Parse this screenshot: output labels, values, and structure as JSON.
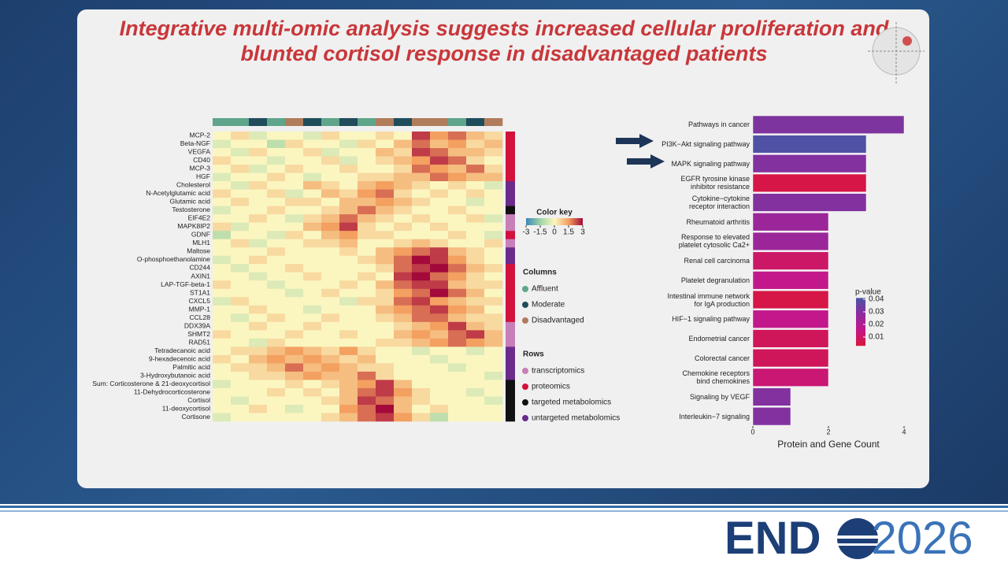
{
  "slide": {
    "title": [
      "Integrative multi-omic analysis suggests increased cellular proliferation and",
      "blunted cortisol response in disadvantaged patients"
    ]
  },
  "footer": {
    "brand_left": "END",
    "brand_right": "2026"
  },
  "chart_data": [
    {
      "type": "heatmap",
      "row_labels": [
        "MCP-2",
        "Beta-NGF",
        "VEGFA",
        "CD40",
        "MCP-3",
        "HGF",
        "Cholesterol",
        "N-Acetylglutamic acid",
        "Glutamic acid",
        "Testosterone",
        "EIF4E2",
        "MAPK8IP2",
        "GDNF",
        "MLH1",
        "Maltose",
        "O-phosphoethanolamine",
        "CD244",
        "AXIN1",
        "LAP-TGF-beta-1",
        "ST1A1",
        "CXCL5",
        "MMP-1",
        "CCL28",
        "DDX39A",
        "SHMT2",
        "RAD51",
        "Tetradecanoic acid",
        "9-hexadecenoic acid",
        "Palmitic acid",
        "3-Hydroxybutanoic acid",
        "Sum: Corticosterone & 21-deoxycortisol",
        "11-Dehydrocorticosterone",
        "Cortisol",
        "11-deoxycortisol",
        "Cortisone"
      ],
      "row_groups": [
        "proteomics",
        "proteomics",
        "proteomics",
        "proteomics",
        "proteomics",
        "proteomics",
        "untargeted metabolomics",
        "untargeted metabolomics",
        "untargeted metabolomics",
        "targeted metabolomics",
        "transcriptomics",
        "transcriptomics",
        "proteomics",
        "transcriptomics",
        "untargeted metabolomics",
        "untargeted metabolomics",
        "proteomics",
        "proteomics",
        "proteomics",
        "proteomics",
        "proteomics",
        "proteomics",
        "proteomics",
        "transcriptomics",
        "transcriptomics",
        "transcriptomics",
        "untargeted metabolomics",
        "untargeted metabolomics",
        "untargeted metabolomics",
        "untargeted metabolomics",
        "targeted metabolomics",
        "targeted metabolomics",
        "targeted metabolomics",
        "targeted metabolomics",
        "targeted metabolomics"
      ],
      "column_groups": [
        "Affluent",
        "Affluent",
        "Moderate",
        "Affluent",
        "Disadvantaged",
        "Moderate",
        "Affluent",
        "Moderate",
        "Affluent",
        "Disadvantaged",
        "Moderate",
        "Disadvantaged",
        "Disadvantaged",
        "Affluent",
        "Moderate",
        "Disadvantaged"
      ],
      "values": [
        [
          0,
          0.5,
          -0.5,
          0,
          0,
          -0.5,
          0.5,
          0,
          0,
          0.5,
          0,
          2.5,
          1.5,
          2,
          1,
          0.5
        ],
        [
          -0.5,
          0,
          0,
          -1,
          0.5,
          0,
          0,
          -0.5,
          0.5,
          0,
          1,
          2,
          1,
          1.5,
          0.5,
          1
        ],
        [
          0,
          -0.5,
          0.5,
          0,
          0,
          0.5,
          -0.5,
          0,
          0,
          1,
          0.5,
          2.5,
          2,
          1,
          1,
          0.5
        ],
        [
          0.5,
          0,
          0,
          -0.5,
          0,
          0,
          0.5,
          -0.5,
          0,
          0.5,
          1,
          1.5,
          2.5,
          2,
          0.5,
          0
        ],
        [
          0,
          0.5,
          -0.5,
          0,
          0.5,
          0,
          0,
          0.5,
          0,
          0,
          0.5,
          2,
          1.5,
          1,
          2,
          0.5
        ],
        [
          -0.5,
          0,
          0,
          0.5,
          0,
          -0.5,
          0,
          0,
          0.5,
          0.5,
          1,
          1,
          2,
          1.5,
          1,
          1
        ],
        [
          0,
          -0.5,
          0.5,
          0,
          0,
          1,
          0.5,
          0,
          1,
          1.5,
          1,
          0.5,
          0,
          0.5,
          0,
          -0.5
        ],
        [
          0.5,
          0,
          0,
          0.5,
          -0.5,
          0,
          1,
          0.5,
          1.5,
          2,
          0.5,
          0,
          0.5,
          0,
          0.5,
          0
        ],
        [
          0,
          0.5,
          0,
          0,
          0.5,
          0.5,
          0,
          1,
          1,
          1.5,
          1,
          0.5,
          0,
          0,
          -0.5,
          0
        ],
        [
          -0.5,
          0,
          0,
          0.5,
          0,
          0,
          0.5,
          1,
          2,
          1,
          0.5,
          0,
          0,
          0.5,
          0,
          0
        ],
        [
          0,
          0,
          0.5,
          0,
          -0.5,
          0.5,
          1,
          2,
          1,
          0.5,
          0,
          0.5,
          0,
          0,
          0.5,
          -0.5
        ],
        [
          0.5,
          -0.5,
          0,
          0,
          0,
          1,
          1.5,
          2.5,
          0.5,
          0,
          0.5,
          0,
          0.5,
          0,
          0,
          0
        ],
        [
          -1,
          0,
          0,
          -0.5,
          0.5,
          0,
          1,
          1.5,
          0.5,
          0.5,
          0,
          0,
          0,
          0.5,
          0,
          -0.5
        ],
        [
          0,
          0.5,
          -0.5,
          0,
          0,
          0.5,
          0.5,
          1,
          0,
          0,
          0.5,
          1,
          0.5,
          0,
          0,
          0.5
        ],
        [
          0,
          0,
          0,
          0.5,
          0,
          0,
          0,
          0.5,
          0,
          1,
          1.5,
          2,
          2.5,
          1,
          0.5,
          0
        ],
        [
          -0.5,
          0,
          0.5,
          0,
          0,
          0,
          0,
          0,
          0.5,
          1,
          2,
          3,
          2.5,
          1.5,
          0.5,
          0
        ],
        [
          0,
          -0.5,
          0,
          0,
          0.5,
          0,
          0,
          0,
          0,
          0.5,
          2,
          2.5,
          3,
          2,
          1,
          0.5
        ],
        [
          0,
          0,
          -0.5,
          0,
          0,
          0.5,
          0,
          0,
          0.5,
          0,
          2.5,
          3,
          2,
          1.5,
          0.5,
          0
        ],
        [
          0.5,
          0,
          0,
          -0.5,
          0,
          0,
          0,
          0.5,
          0,
          1,
          2,
          2.5,
          2.5,
          1,
          0.5,
          0.5
        ],
        [
          0,
          0,
          0,
          0,
          -0.5,
          0,
          0.5,
          0,
          0,
          0.5,
          1.5,
          2,
          3,
          2,
          1,
          0
        ],
        [
          -0.5,
          0.5,
          0,
          0,
          0,
          0,
          0,
          -0.5,
          0.5,
          0.5,
          2,
          2.5,
          1.5,
          1,
          0.5,
          0.5
        ],
        [
          0,
          0,
          0.5,
          0,
          0,
          -0.5,
          0,
          0,
          0,
          1,
          1.5,
          2,
          2.5,
          1.5,
          1,
          0
        ],
        [
          0,
          -0.5,
          0,
          0.5,
          0,
          0,
          0.5,
          0,
          0,
          0.5,
          1,
          2,
          2,
          1,
          0.5,
          0.5
        ],
        [
          0,
          0,
          0.5,
          0,
          0,
          0.5,
          0,
          0,
          0,
          0,
          0.5,
          1,
          1.5,
          2.5,
          1,
          0.5
        ],
        [
          0.5,
          0,
          0,
          0,
          0.5,
          0,
          0,
          0.5,
          0,
          0,
          1,
          1.5,
          1,
          2,
          2.5,
          1
        ],
        [
          0,
          0,
          -0.5,
          0.5,
          0,
          0,
          0,
          0,
          0,
          0.5,
          0.5,
          1,
          1.5,
          2,
          1.5,
          1
        ],
        [
          0,
          0.5,
          0.5,
          1,
          1.5,
          1,
          0.5,
          1.5,
          0.5,
          0,
          0,
          -0.5,
          0,
          0,
          -0.5,
          0
        ],
        [
          0.5,
          0,
          1,
          1.5,
          1,
          1.5,
          1,
          0.5,
          1,
          0,
          0,
          0,
          -0.5,
          0,
          0,
          0
        ],
        [
          0,
          0.5,
          0.5,
          1,
          2,
          1,
          1.5,
          1,
          0.5,
          0.5,
          0,
          0,
          0,
          -0.5,
          0,
          0
        ],
        [
          0,
          0,
          0.5,
          0.5,
          1,
          1.5,
          1,
          1,
          2,
          0.5,
          0,
          0,
          0,
          0,
          0,
          -0.5
        ],
        [
          -0.5,
          0,
          0,
          0,
          0.5,
          0,
          0.5,
          1,
          1.5,
          2.5,
          1,
          0,
          0,
          0,
          0,
          0
        ],
        [
          0,
          0,
          0,
          0.5,
          0,
          0.5,
          0,
          1,
          2,
          2.5,
          1.5,
          0.5,
          0,
          0,
          -0.5,
          0
        ],
        [
          0,
          -0.5,
          0,
          0,
          0,
          0,
          0.5,
          1,
          2.5,
          2,
          1,
          0.5,
          0,
          0,
          0,
          -0.5
        ],
        [
          0,
          0,
          0.5,
          0,
          -0.5,
          0,
          0,
          1.5,
          2,
          3,
          1,
          0,
          0.5,
          0,
          0,
          0
        ],
        [
          -0.5,
          0,
          0,
          0,
          0,
          0,
          0.5,
          1,
          2,
          2.5,
          1.5,
          0.5,
          -1,
          0,
          0,
          0
        ]
      ],
      "color_key": {
        "title": "Color key",
        "lim": [
          -3,
          3
        ],
        "ticks": [
          -3,
          -1.5,
          0,
          1.5,
          3
        ],
        "colors": [
          "#3b86bb",
          "#9fd3a4",
          "#fbf6c0",
          "#f3a060",
          "#a3093a"
        ]
      },
      "columns_legend": {
        "title": "Columns",
        "items": [
          {
            "name": "Affluent",
            "color": "#5fa58c"
          },
          {
            "name": "Moderate",
            "color": "#1f4d5c"
          },
          {
            "name": "Disadvantaged",
            "color": "#b07c5c"
          }
        ]
      },
      "rows_legend": {
        "title": "Rows",
        "items": [
          {
            "name": "transcriptomics",
            "color": "#c77fb8"
          },
          {
            "name": "proteomics",
            "color": "#d2123c"
          },
          {
            "name": "targeted metabolomics",
            "color": "#111111"
          },
          {
            "name": "untargeted metabolomics",
            "color": "#6a2b8a"
          }
        ]
      }
    },
    {
      "type": "bar",
      "orientation": "horizontal",
      "categories": [
        "Pathways in cancer",
        "PI3K−Akt signaling pathway",
        "MAPK signaling pathway",
        "EGFR tyrosine kinase\ninhibitor resistance",
        "Cytokine−cytokine\nreceptor interaction",
        "Rheumatoid arthritis",
        "Response to elevated\nplatelet cytosolic Ca2+",
        "Renal cell carcinoma",
        "Platelet degranulation",
        "Intestinal immune network\nfor IgA production",
        "HIF−1 signaling pathway",
        "Endometrial cancer",
        "Colorectal cancer",
        "Chemokine receptors\nbind chemokines",
        "Signaling by VEGF",
        "Interleukin−7 signaling"
      ],
      "values": [
        4,
        3,
        3,
        3,
        3,
        2,
        2,
        2,
        2,
        2,
        2,
        2,
        2,
        2,
        1,
        1
      ],
      "p_values": [
        0.031,
        0.04,
        0.03,
        0.005,
        0.03,
        0.025,
        0.025,
        0.01,
        0.016,
        0.005,
        0.016,
        0.008,
        0.008,
        0.012,
        0.03,
        0.03
      ],
      "xlim": [
        0,
        4
      ],
      "xticks": [
        0,
        2,
        4
      ],
      "xlabel": "Protein and Gene Count",
      "color_scale": {
        "title": "p-value",
        "lim": [
          0.003,
          0.041
        ],
        "ticks": [
          0.01,
          0.02,
          0.03,
          0.04
        ],
        "colors": [
          "#d8163a",
          "#c3178a",
          "#8c2b9e",
          "#4a55a4"
        ]
      }
    }
  ]
}
